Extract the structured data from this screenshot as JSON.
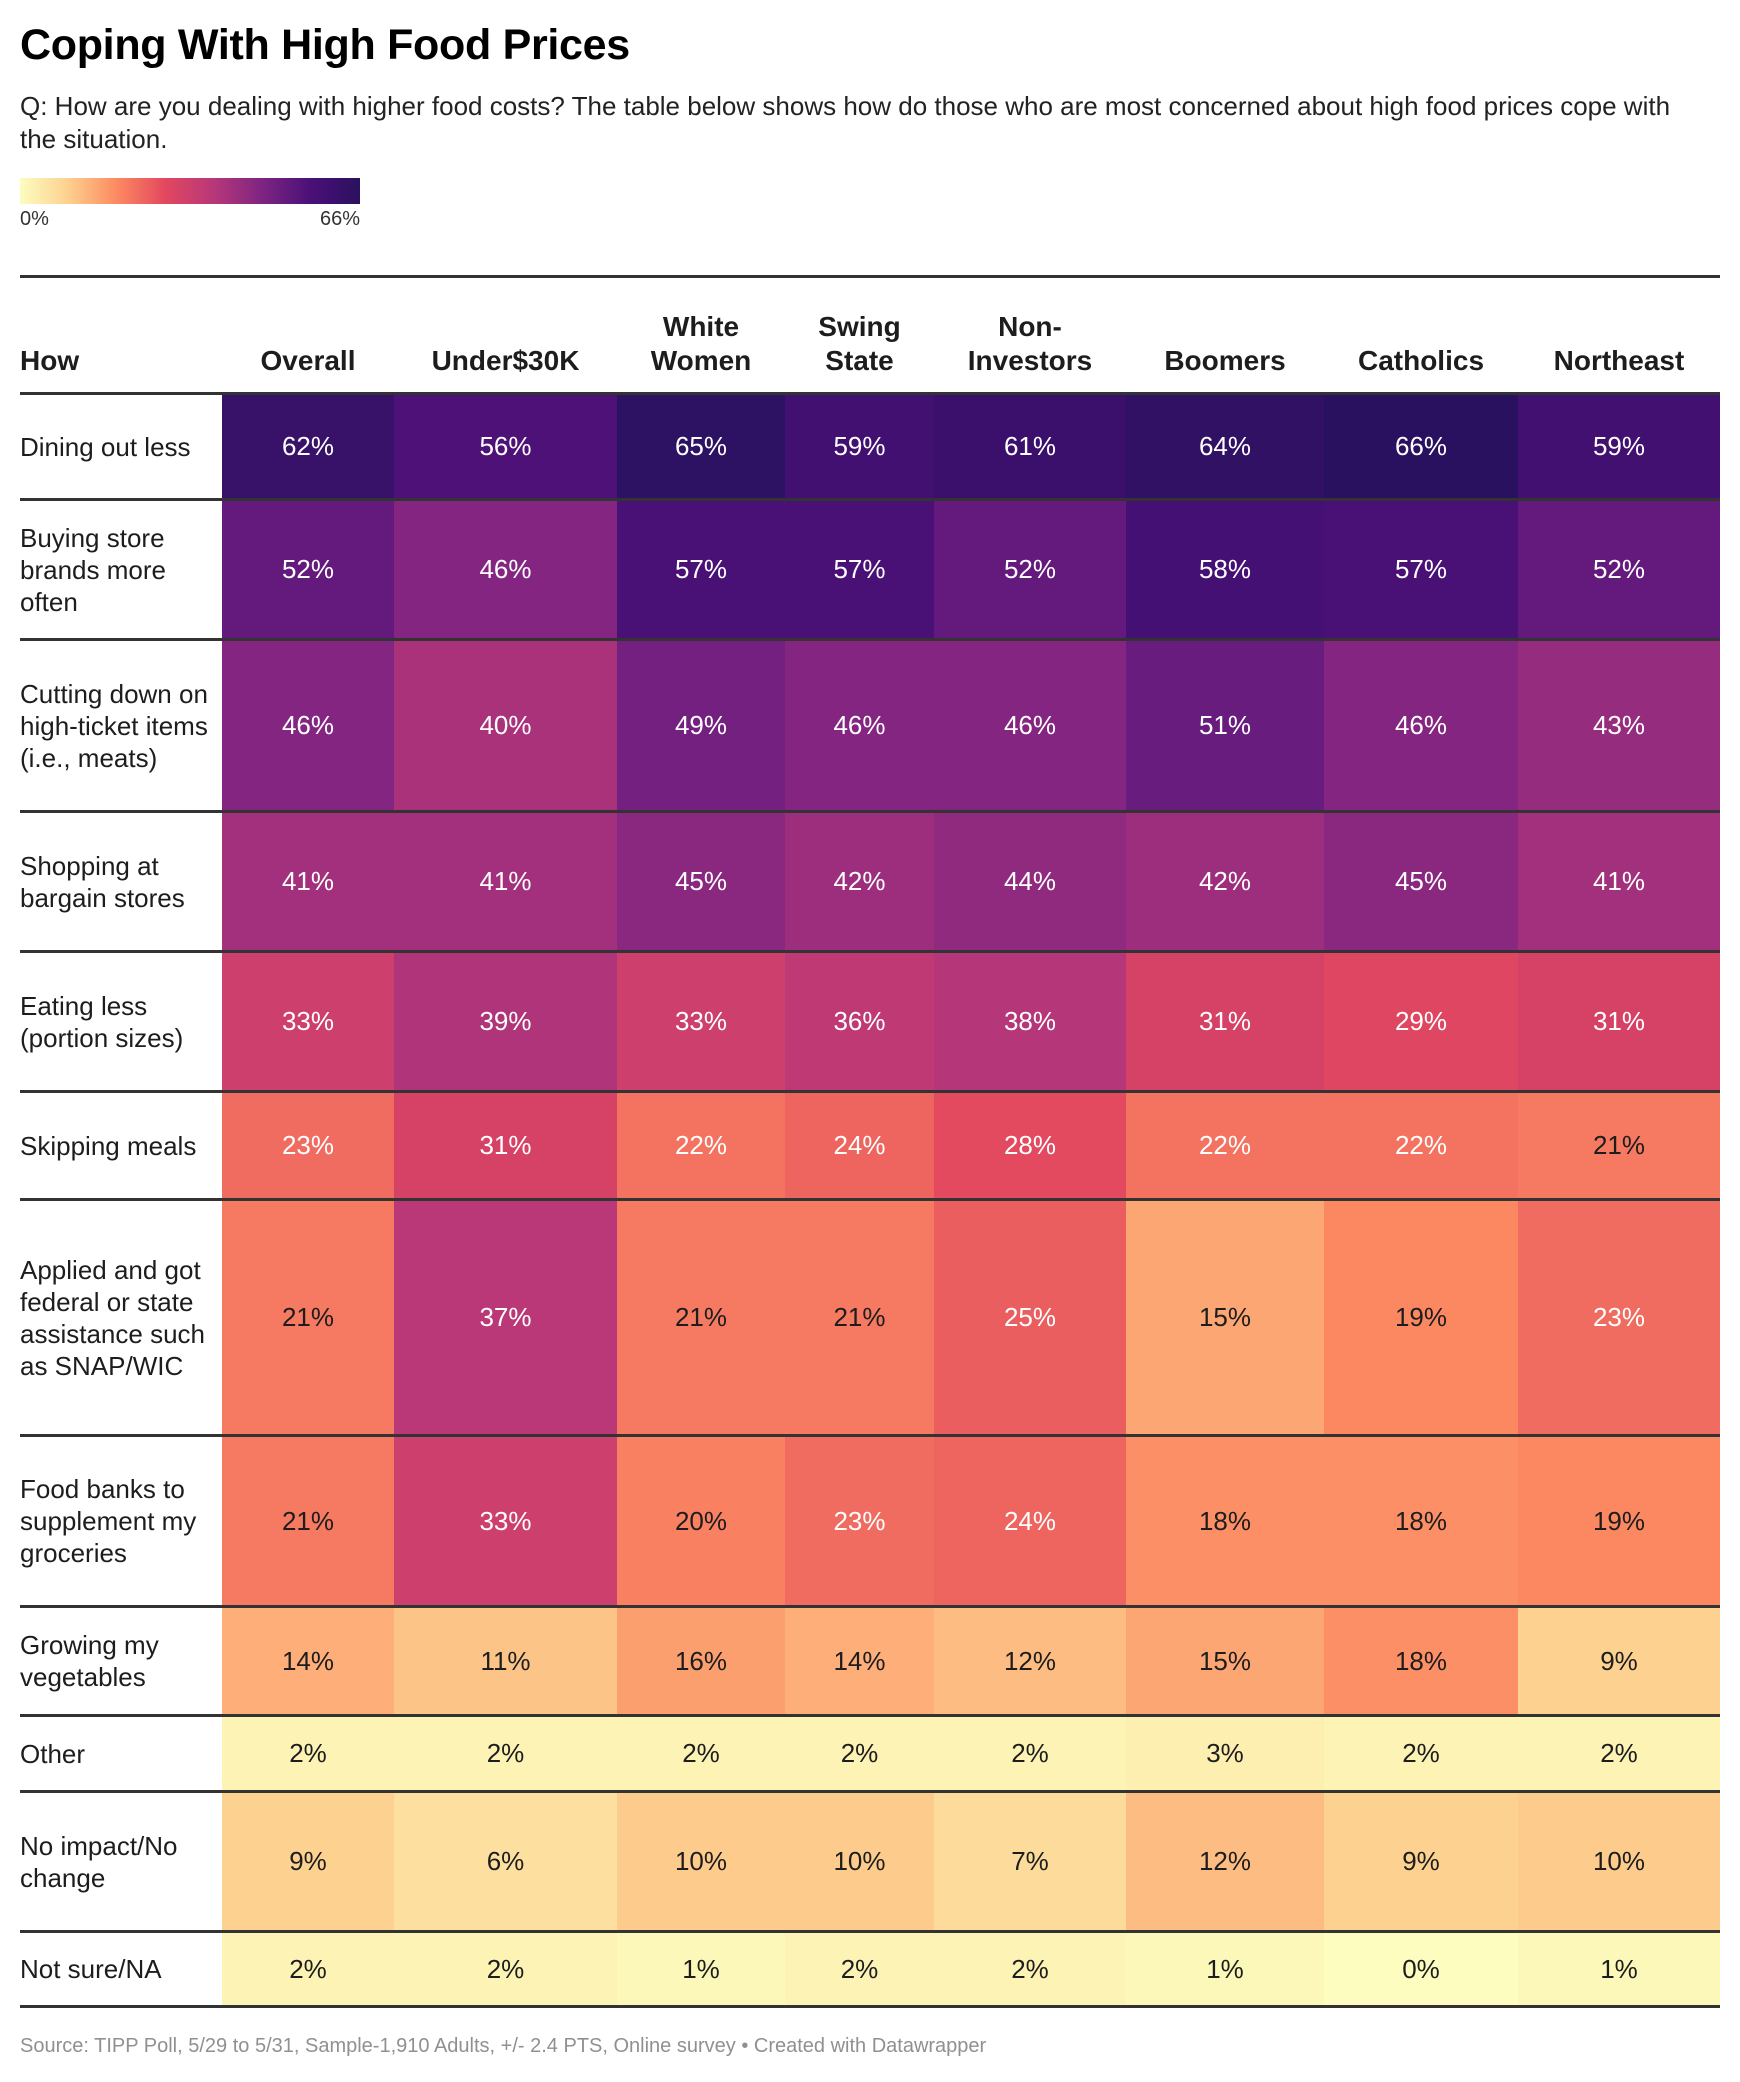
{
  "title": "Coping With High Food Prices",
  "subtitle": "Q: How are you dealing with higher food costs? The table below shows how do those who are most concerned about high food prices cope with the situation.",
  "legend": {
    "min_label": "0%",
    "max_label": "66%",
    "min": 0,
    "max": 66
  },
  "colors": {
    "scale": [
      "#fcfdbf",
      "#fdd08f",
      "#fc8961",
      "#e2475f",
      "#b73779",
      "#7d2482",
      "#4a1077",
      "#2a115f"
    ],
    "text_dark": "#1d1d1d",
    "text_light": "#ffffff",
    "light_text_threshold": 22
  },
  "source": "Source: TIPP Poll, 5/29 to 5/31, Sample-1,910 Adults, +/- 2.4 PTS, Online survey • Created with Datawrapper",
  "chart_data": {
    "type": "heatmap",
    "title": "Coping With High Food Prices",
    "row_header": "How",
    "columns": [
      "Overall",
      "Under$30K",
      "White Women",
      "Swing State",
      "Non-Investors",
      "Boomers",
      "Catholics",
      "Northeast"
    ],
    "rows": [
      {
        "label": "Dining out less",
        "values": [
          62,
          56,
          65,
          59,
          61,
          64,
          66,
          59
        ]
      },
      {
        "label": "Buying store brands more often",
        "values": [
          52,
          46,
          57,
          57,
          52,
          58,
          57,
          52
        ]
      },
      {
        "label": "Cutting down on high-ticket items (i.e., meats)",
        "values": [
          46,
          40,
          49,
          46,
          46,
          51,
          46,
          43
        ]
      },
      {
        "label": "Shopping at bargain stores",
        "values": [
          41,
          41,
          45,
          42,
          44,
          42,
          45,
          41
        ]
      },
      {
        "label": "Eating less (portion sizes)",
        "values": [
          33,
          39,
          33,
          36,
          38,
          31,
          29,
          31
        ]
      },
      {
        "label": "Skipping meals",
        "values": [
          23,
          31,
          22,
          24,
          28,
          22,
          22,
          21
        ]
      },
      {
        "label": "Applied and got federal or state assistance such as SNAP/WIC",
        "values": [
          21,
          37,
          21,
          21,
          25,
          15,
          19,
          23
        ]
      },
      {
        "label": "Food banks to supplement my groceries",
        "values": [
          21,
          33,
          20,
          23,
          24,
          18,
          18,
          19
        ]
      },
      {
        "label": "Growing my vegetables",
        "values": [
          14,
          11,
          16,
          14,
          12,
          15,
          18,
          9
        ]
      },
      {
        "label": "Other",
        "values": [
          2,
          2,
          2,
          2,
          2,
          3,
          2,
          2
        ]
      },
      {
        "label": "No impact/No change",
        "values": [
          9,
          6,
          10,
          10,
          7,
          12,
          9,
          10
        ]
      },
      {
        "label": "Not sure/NA",
        "values": [
          2,
          2,
          1,
          2,
          2,
          1,
          0,
          1
        ]
      }
    ],
    "value_suffix": "%",
    "color_range": [
      0,
      66
    ]
  }
}
